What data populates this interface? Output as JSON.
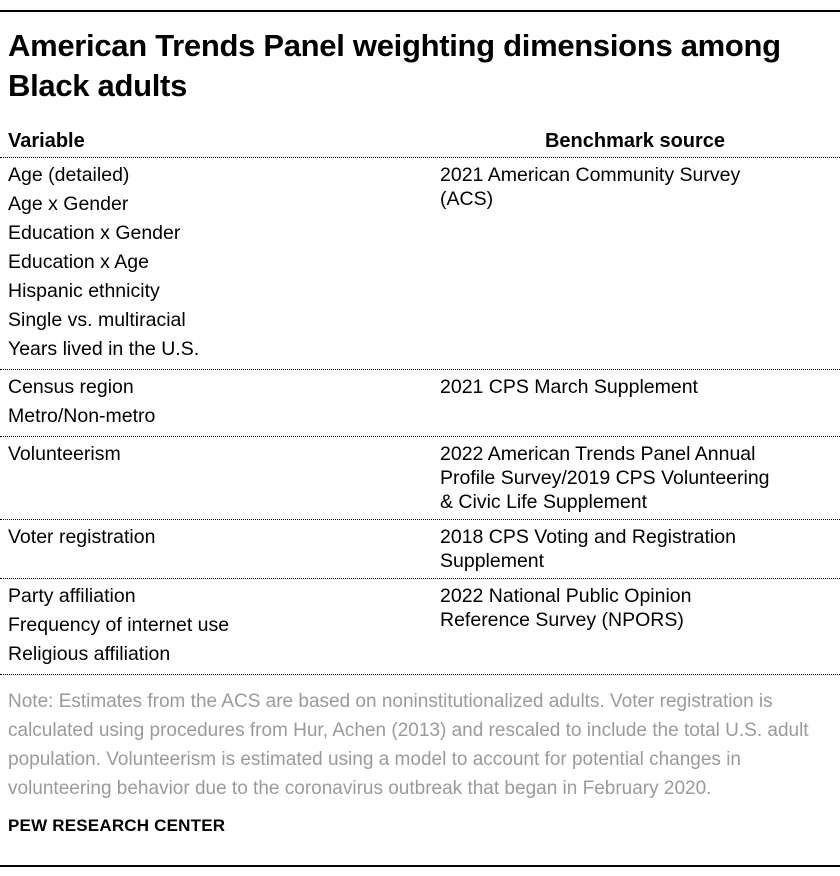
{
  "title": "American Trends Panel weighting dimensions among Black adults",
  "table": {
    "headers": {
      "variable": "Variable",
      "benchmark": "Benchmark source"
    },
    "rows": [
      {
        "variables": [
          "Age (detailed)",
          "Age x Gender",
          "Education x Gender",
          "Education x Age",
          "Hispanic ethnicity",
          "Single vs. multiracial",
          "Years lived in the U.S."
        ],
        "source": "2021 American Community Survey (ACS)"
      },
      {
        "variables": [
          "Census region",
          "Metro/Non-metro"
        ],
        "source": "2021 CPS March Supplement"
      },
      {
        "variables": [
          "Volunteerism"
        ],
        "source": "2022 American Trends Panel Annual Profile Survey/2019 CPS Volunteering & Civic Life Supplement"
      },
      {
        "variables": [
          "Voter registration"
        ],
        "source": "2018 CPS Voting and Registration Supplement"
      },
      {
        "variables": [
          "Party affiliation",
          "Frequency of internet use",
          "Religious affiliation"
        ],
        "source": "2022 National Public Opinion Reference Survey (NPORS)"
      }
    ]
  },
  "note": "Note: Estimates from the ACS are based on noninstitutionalized adults. Voter registration is calculated using procedures from Hur, Achen (2013) and rescaled to include the total U.S. adult population. Volunteerism is estimated using a model to account for potential changes in volunteering behavior due to the coronavirus outbreak that began in February 2020.",
  "footer": "PEW RESEARCH CENTER",
  "colors": {
    "title_text": "#000000",
    "body_text": "#000000",
    "note_text": "#9a9a9a",
    "rule": "#000000",
    "separator": "#000000",
    "background": "#ffffff"
  }
}
